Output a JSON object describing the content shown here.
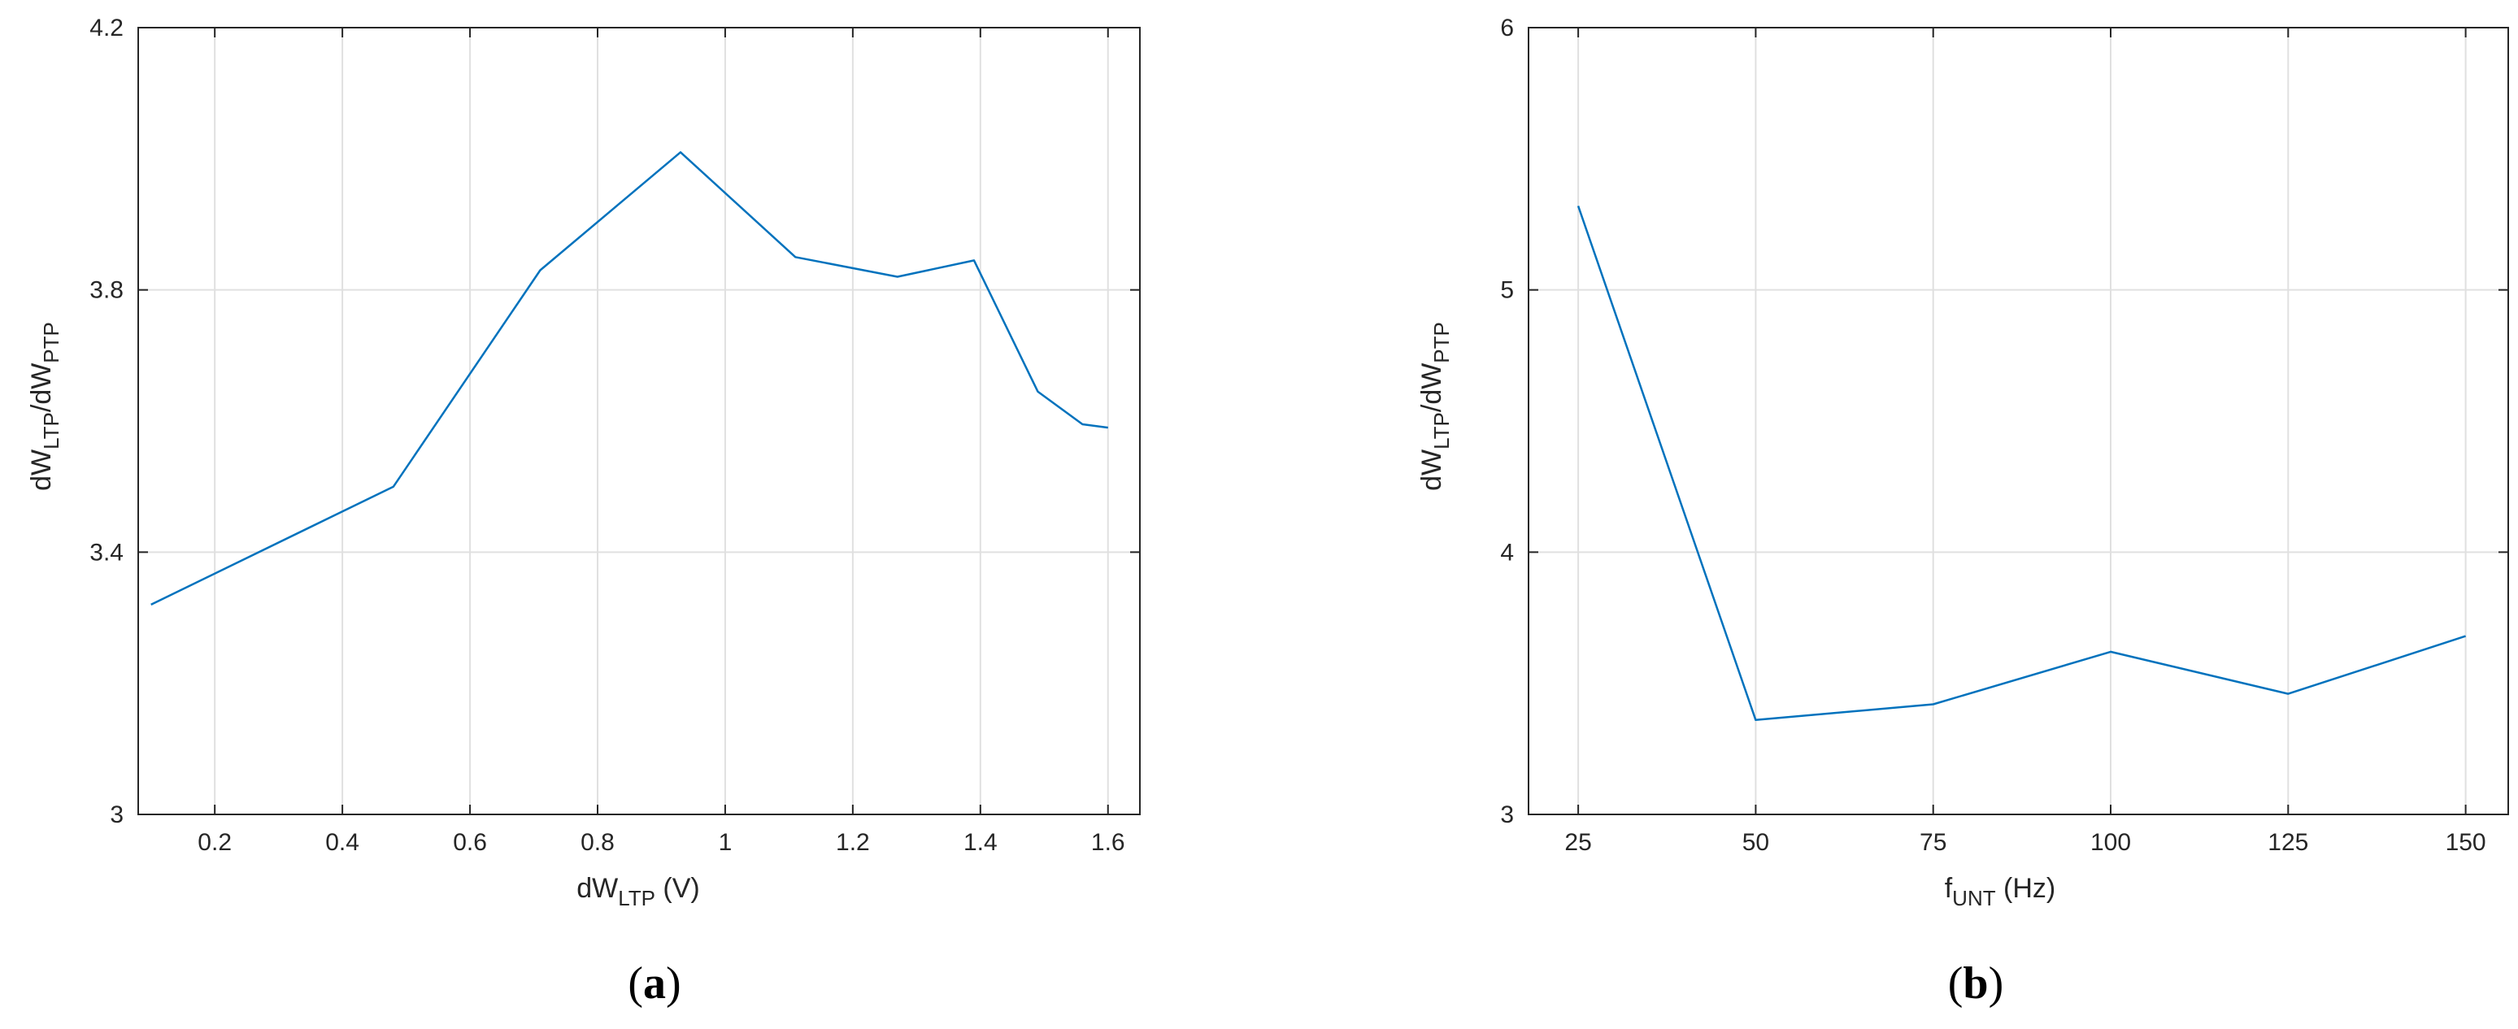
{
  "figure_captions": [
    {
      "open": "(",
      "letter": "a",
      "close": ")"
    },
    {
      "open": "(",
      "letter": "b",
      "close": ")"
    }
  ],
  "chart_data": [
    {
      "type": "line",
      "grid": true,
      "color": "#0072BD",
      "xlabel": {
        "main": "dW",
        "sub": "LTP",
        "rest": " (V)"
      },
      "ylabel": {
        "main1": "dW",
        "sub1": "LTP",
        "mid": "/dW",
        "sub2": "PTP"
      },
      "xlim": [
        0.08,
        1.65
      ],
      "ylim": [
        3.0,
        4.2
      ],
      "xticks": [
        0.2,
        0.4,
        0.6,
        0.8,
        1.0,
        1.2,
        1.4,
        1.6
      ],
      "xtick_labels": [
        "0.2",
        "0.4",
        "0.6",
        "0.8",
        "1",
        "1.2",
        "1.4",
        "1.6"
      ],
      "yticks": [
        3.0,
        3.4,
        3.8,
        4.2
      ],
      "ytick_labels": [
        "3",
        "3.4",
        "3.8",
        "4.2"
      ],
      "series": [
        {
          "x": [
            0.1,
            0.48,
            0.71,
            0.93,
            1.11,
            1.27,
            1.39,
            1.49,
            1.56,
            1.6
          ],
          "y": [
            3.32,
            3.5,
            3.83,
            4.01,
            3.85,
            3.82,
            3.845,
            3.645,
            3.595,
            3.59
          ]
        }
      ]
    },
    {
      "type": "line",
      "grid": true,
      "color": "#0072BD",
      "xlabel": {
        "main": "f",
        "sub": "UNT",
        "rest": " (Hz)"
      },
      "ylabel": {
        "main1": "dW",
        "sub1": "LTP",
        "mid": "/dW",
        "sub2": "PTP"
      },
      "xlim": [
        18,
        156
      ],
      "ylim": [
        3,
        6
      ],
      "xticks": [
        25,
        50,
        75,
        100,
        125,
        150
      ],
      "xtick_labels": [
        "25",
        "50",
        "75",
        "100",
        "125",
        "150"
      ],
      "yticks": [
        3,
        4,
        5,
        6
      ],
      "ytick_labels": [
        "3",
        "4",
        "5",
        "6"
      ],
      "series": [
        {
          "x": [
            25,
            50,
            75,
            100,
            125,
            150
          ],
          "y": [
            5.32,
            3.36,
            3.42,
            3.62,
            3.46,
            3.68
          ]
        }
      ]
    }
  ]
}
